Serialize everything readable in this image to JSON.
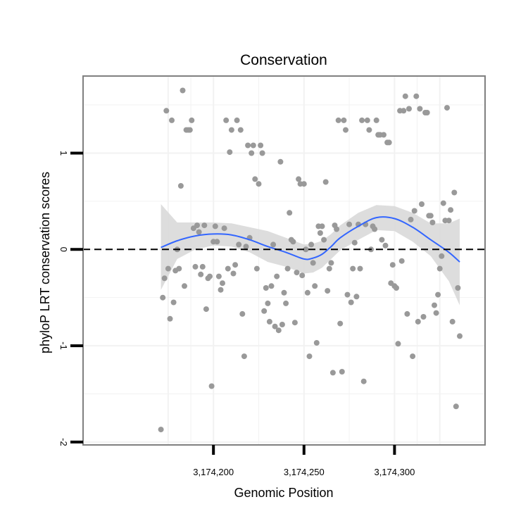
{
  "chart_data": {
    "type": "scatter",
    "title": "Conservation",
    "xlabel": "Genomic Position",
    "ylabel": "phyloP LRT conservation scores",
    "xlim": [
      3174128,
      3174350
    ],
    "ylim": [
      -2.03,
      1.8
    ],
    "x_ticks": [
      {
        "value": 3174200,
        "label": "3,174,200"
      },
      {
        "value": 3174250,
        "label": "3,174,250"
      },
      {
        "value": 3174300,
        "label": "3,174,300"
      }
    ],
    "y_ticks": [
      {
        "value": -2,
        "label": "-2"
      },
      {
        "value": -1,
        "label": "-1"
      },
      {
        "value": 0,
        "label": "0"
      },
      {
        "value": 1,
        "label": "1"
      }
    ],
    "grid": true,
    "reference_line": {
      "y": 0,
      "style": "dashed"
    },
    "colors": {
      "points": "#999999",
      "smooth": "#3366ff",
      "ribbon": "#d9d9d9",
      "panel_border": "#808080",
      "grid": "#f2f2f2"
    },
    "points": [
      [
        3174171,
        -1.87
      ],
      [
        3174172,
        -0.5
      ],
      [
        3174173,
        -0.3
      ],
      [
        3174174,
        1.44
      ],
      [
        3174175,
        -0.2
      ],
      [
        3174176,
        -0.72
      ],
      [
        3174177,
        1.34
      ],
      [
        3174178,
        -0.55
      ],
      [
        3174179,
        -0.22
      ],
      [
        3174180,
        0.0
      ],
      [
        3174181,
        -0.2
      ],
      [
        3174182,
        0.66
      ],
      [
        3174183,
        1.65
      ],
      [
        3174184,
        -0.38
      ],
      [
        3174185,
        1.24
      ],
      [
        3174186,
        1.24
      ],
      [
        3174187,
        1.24
      ],
      [
        3174188,
        1.34
      ],
      [
        3174189,
        0.22
      ],
      [
        3174190,
        -0.18
      ],
      [
        3174191,
        0.25
      ],
      [
        3174192,
        0.18
      ],
      [
        3174193,
        -0.26
      ],
      [
        3174194,
        -0.18
      ],
      [
        3174195,
        0.25
      ],
      [
        3174196,
        -0.62
      ],
      [
        3174197,
        -0.3
      ],
      [
        3174198,
        -0.28
      ],
      [
        3174199,
        -1.42
      ],
      [
        3174200,
        0.08
      ],
      [
        3174201,
        0.24
      ],
      [
        3174202,
        0.08
      ],
      [
        3174203,
        -0.28
      ],
      [
        3174204,
        -0.42
      ],
      [
        3174205,
        -0.35
      ],
      [
        3174206,
        0.22
      ],
      [
        3174207,
        1.34
      ],
      [
        3174208,
        -0.2
      ],
      [
        3174209,
        1.01
      ],
      [
        3174210,
        1.24
      ],
      [
        3174211,
        -0.25
      ],
      [
        3174212,
        -0.16
      ],
      [
        3174213,
        1.34
      ],
      [
        3174214,
        0.05
      ],
      [
        3174215,
        1.24
      ],
      [
        3174216,
        -0.67
      ],
      [
        3174217,
        -1.11
      ],
      [
        3174218,
        0.03
      ],
      [
        3174219,
        1.08
      ],
      [
        3174220,
        0.12
      ],
      [
        3174221,
        1.0
      ],
      [
        3174222,
        1.08
      ],
      [
        3174223,
        0.73
      ],
      [
        3174224,
        -0.2
      ],
      [
        3174225,
        0.68
      ],
      [
        3174226,
        1.08
      ],
      [
        3174227,
        1.0
      ],
      [
        3174228,
        -0.64
      ],
      [
        3174229,
        -0.4
      ],
      [
        3174230,
        -0.56
      ],
      [
        3174231,
        -0.75
      ],
      [
        3174232,
        -0.38
      ],
      [
        3174233,
        0.05
      ],
      [
        3174234,
        -0.8
      ],
      [
        3174235,
        -0.28
      ],
      [
        3174236,
        -0.84
      ],
      [
        3174237,
        0.91
      ],
      [
        3174238,
        -0.78
      ],
      [
        3174239,
        -0.45
      ],
      [
        3174240,
        -0.56
      ],
      [
        3174241,
        -0.2
      ],
      [
        3174242,
        0.38
      ],
      [
        3174243,
        0.1
      ],
      [
        3174244,
        0.08
      ],
      [
        3174245,
        -0.76
      ],
      [
        3174246,
        -0.24
      ],
      [
        3174247,
        0.73
      ],
      [
        3174248,
        0.68
      ],
      [
        3174249,
        -0.27
      ],
      [
        3174250,
        0.68
      ],
      [
        3174251,
        0.0
      ],
      [
        3174252,
        -0.45
      ],
      [
        3174253,
        -1.11
      ],
      [
        3174254,
        0.05
      ],
      [
        3174255,
        -0.14
      ],
      [
        3174256,
        -0.38
      ],
      [
        3174257,
        -0.97
      ],
      [
        3174258,
        0.24
      ],
      [
        3174259,
        0.17
      ],
      [
        3174260,
        0.24
      ],
      [
        3174261,
        0.1
      ],
      [
        3174262,
        0.7
      ],
      [
        3174263,
        -0.43
      ],
      [
        3174264,
        -0.2
      ],
      [
        3174265,
        -0.14
      ],
      [
        3174266,
        -1.28
      ],
      [
        3174267,
        0.25
      ],
      [
        3174268,
        0.21
      ],
      [
        3174269,
        1.34
      ],
      [
        3174270,
        -0.77
      ],
      [
        3174271,
        -1.27
      ],
      [
        3174272,
        1.34
      ],
      [
        3174273,
        1.24
      ],
      [
        3174274,
        -0.47
      ],
      [
        3174275,
        0.26
      ],
      [
        3174276,
        -0.55
      ],
      [
        3174277,
        -0.2
      ],
      [
        3174278,
        0.07
      ],
      [
        3174279,
        -0.49
      ],
      [
        3174280,
        0.26
      ],
      [
        3174281,
        -0.2
      ],
      [
        3174282,
        1.34
      ],
      [
        3174283,
        -1.37
      ],
      [
        3174284,
        0.26
      ],
      [
        3174285,
        1.34
      ],
      [
        3174286,
        1.24
      ],
      [
        3174287,
        0.0
      ],
      [
        3174288,
        0.24
      ],
      [
        3174289,
        0.21
      ],
      [
        3174290,
        1.34
      ],
      [
        3174291,
        1.19
      ],
      [
        3174292,
        1.19
      ],
      [
        3174293,
        0.1
      ],
      [
        3174294,
        1.19
      ],
      [
        3174295,
        0.04
      ],
      [
        3174296,
        1.11
      ],
      [
        3174297,
        1.11
      ],
      [
        3174298,
        -0.35
      ],
      [
        3174299,
        -0.16
      ],
      [
        3174300,
        -0.38
      ],
      [
        3174301,
        -0.4
      ],
      [
        3174302,
        -0.98
      ],
      [
        3174303,
        1.44
      ],
      [
        3174304,
        -0.12
      ],
      [
        3174305,
        1.44
      ],
      [
        3174306,
        1.59
      ],
      [
        3174307,
        -0.67
      ],
      [
        3174308,
        1.46
      ],
      [
        3174309,
        0.31
      ],
      [
        3174310,
        -1.11
      ],
      [
        3174311,
        0.4
      ],
      [
        3174312,
        1.59
      ],
      [
        3174313,
        -0.75
      ],
      [
        3174314,
        1.46
      ],
      [
        3174315,
        0.47
      ],
      [
        3174316,
        -0.7
      ],
      [
        3174317,
        1.42
      ],
      [
        3174318,
        1.42
      ],
      [
        3174319,
        0.35
      ],
      [
        3174320,
        0.35
      ],
      [
        3174321,
        0.28
      ],
      [
        3174322,
        -0.58
      ],
      [
        3174323,
        -0.66
      ],
      [
        3174324,
        -0.47
      ],
      [
        3174325,
        -0.2
      ],
      [
        3174326,
        -0.07
      ],
      [
        3174327,
        0.48
      ],
      [
        3174328,
        0.3
      ],
      [
        3174329,
        1.47
      ],
      [
        3174330,
        0.3
      ],
      [
        3174331,
        0.41
      ],
      [
        3174332,
        -0.75
      ],
      [
        3174333,
        0.59
      ],
      [
        3174334,
        -1.63
      ],
      [
        3174335,
        -0.4
      ],
      [
        3174336,
        -0.9
      ]
    ],
    "smooth": {
      "x": [
        3174171,
        3174180,
        3174190,
        3174200,
        3174210,
        3174220,
        3174230,
        3174240,
        3174250,
        3174255,
        3174260,
        3174265,
        3174270,
        3174280,
        3174290,
        3174300,
        3174310,
        3174320,
        3174330,
        3174336
      ],
      "y": [
        0.02,
        0.09,
        0.14,
        0.16,
        0.15,
        0.1,
        0.03,
        -0.03,
        -0.1,
        -0.09,
        -0.05,
        0.03,
        0.12,
        0.24,
        0.33,
        0.32,
        0.23,
        0.1,
        -0.03,
        -0.13
      ],
      "lower": [
        -0.42,
        -0.1,
        0.0,
        0.04,
        0.03,
        -0.03,
        -0.13,
        -0.18,
        -0.25,
        -0.24,
        -0.19,
        -0.1,
        -0.01,
        0.1,
        0.2,
        0.19,
        0.08,
        -0.07,
        -0.33,
        -0.58
      ],
      "upper": [
        0.47,
        0.28,
        0.28,
        0.28,
        0.27,
        0.23,
        0.19,
        0.12,
        0.05,
        0.06,
        0.09,
        0.16,
        0.25,
        0.38,
        0.46,
        0.45,
        0.38,
        0.27,
        0.27,
        0.32
      ]
    }
  }
}
